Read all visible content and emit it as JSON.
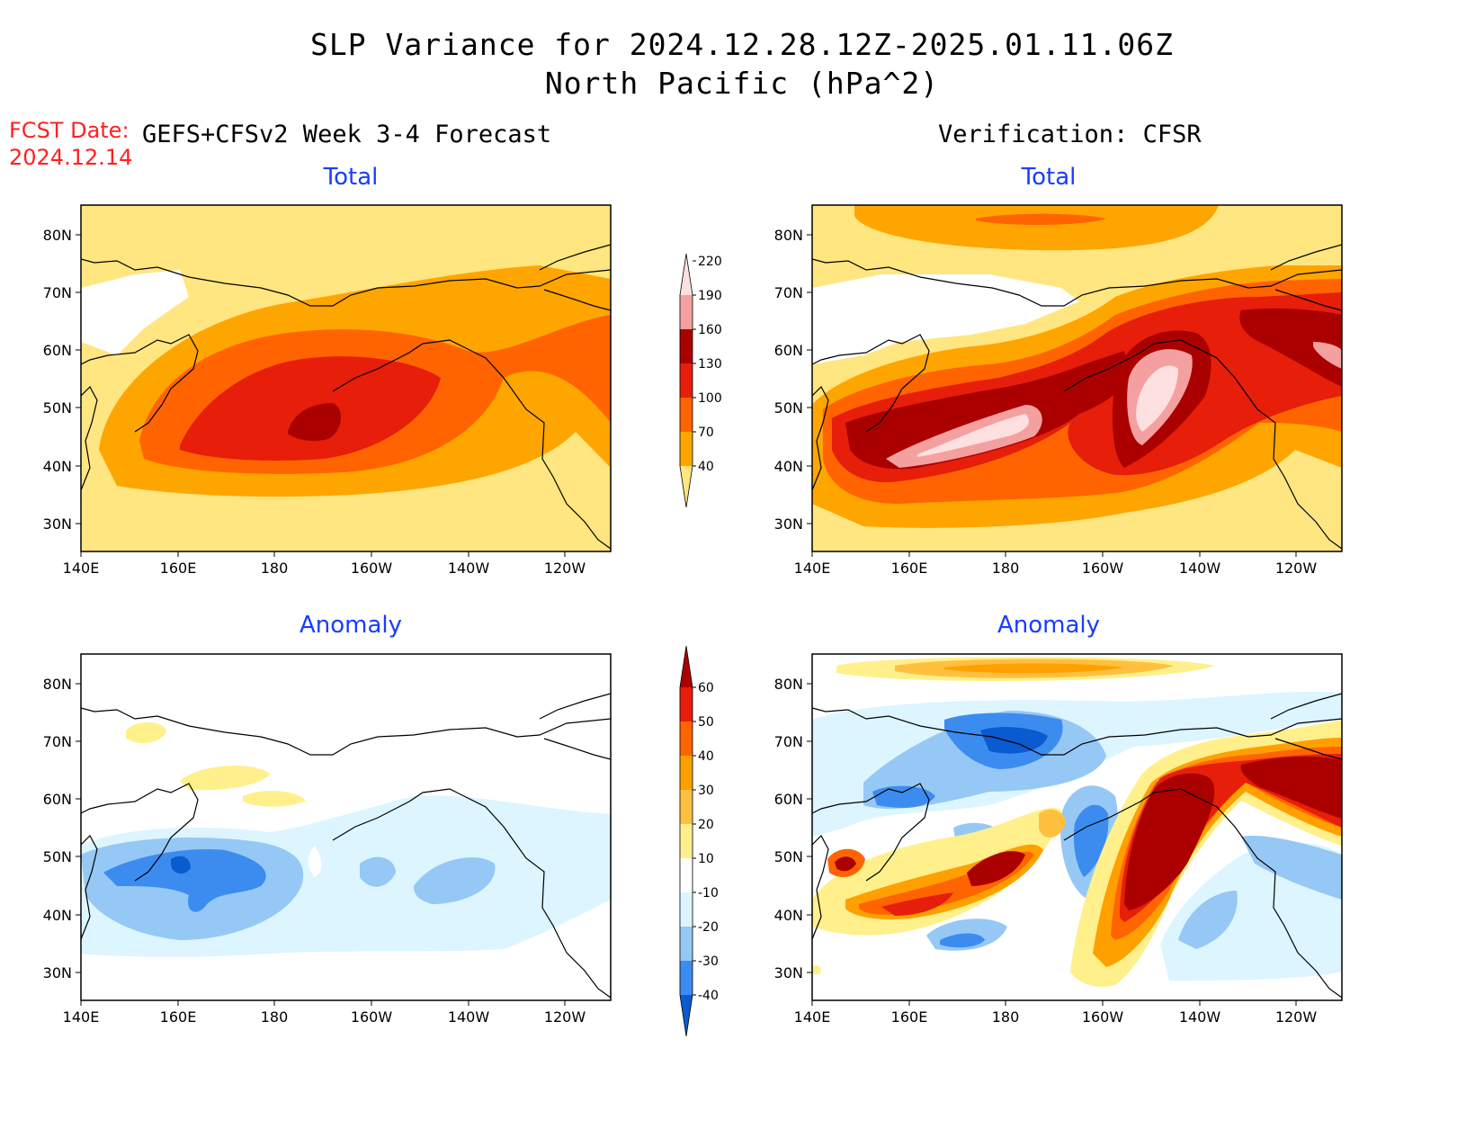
{
  "title": {
    "line1": "SLP Variance for 2024.12.28.12Z-2025.01.11.06Z",
    "line2": "North Pacific (hPa^2)"
  },
  "fcst": {
    "label": "FCST Date:",
    "date": "2024.12.14"
  },
  "left_header": "GEFS+CFSv2 Week 3-4 Forecast",
  "right_header": "Verification: CFSR",
  "panels": {
    "fc_total": {
      "subtitle": "Total"
    },
    "ver_total": {
      "subtitle": "Total"
    },
    "fc_anom": {
      "subtitle": "Anomaly"
    },
    "ver_anom": {
      "subtitle": "Anomaly"
    }
  },
  "axes": {
    "lat_labels": [
      "80N",
      "70N",
      "60N",
      "50N",
      "40N",
      "30N"
    ],
    "lon_labels": [
      "140E",
      "160E",
      "180",
      "160W",
      "140W",
      "120W"
    ]
  },
  "colorbars": {
    "total": {
      "levels": [
        "40",
        "70",
        "100",
        "130",
        "160",
        "190",
        "220"
      ],
      "colors": [
        "#ffe680",
        "#ffa500",
        "#ff6400",
        "#e61e0a",
        "#aa0000",
        "#f5a0a0",
        "#ffe0e0"
      ]
    },
    "anomaly": {
      "levels": [
        "-40",
        "-30",
        "-20",
        "-10",
        "10",
        "20",
        "30",
        "40",
        "50",
        "60"
      ],
      "colors": [
        "#0a5ad0",
        "#3c8cf0",
        "#96c8f5",
        "#dcf5ff",
        "#ffffff",
        "#fff08c",
        "#ffc040",
        "#ffa000",
        "#ff6400",
        "#e61e0a",
        "#aa0000"
      ]
    }
  }
}
